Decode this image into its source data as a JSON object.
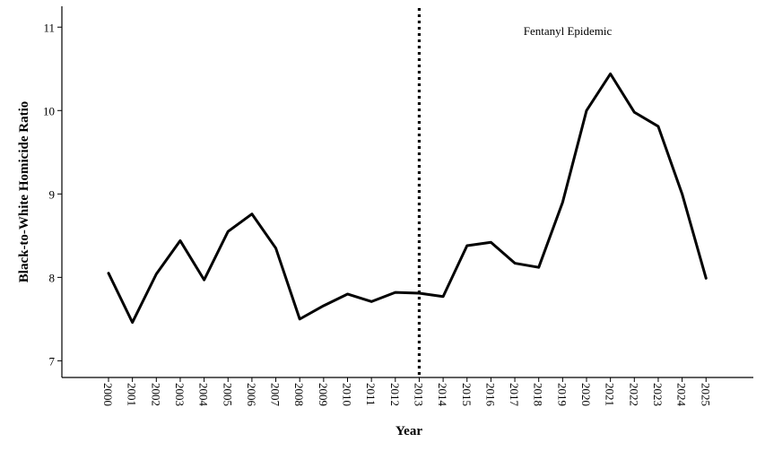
{
  "chart_data": {
    "type": "line",
    "title": "",
    "xlabel": "Year",
    "ylabel": "Black-to-White Homicide Ratio",
    "x": [
      "2000",
      "2001",
      "2002",
      "2003",
      "2004",
      "2005",
      "2006",
      "2007",
      "2008",
      "2009",
      "2010",
      "2011",
      "2012",
      "2013",
      "2014",
      "2015",
      "2016",
      "2017",
      "2018",
      "2019",
      "2020",
      "2021",
      "2022",
      "2023",
      "2024",
      "2025"
    ],
    "series": [
      {
        "name": "",
        "values": [
          8.05,
          7.46,
          8.04,
          8.44,
          7.97,
          8.55,
          8.76,
          8.35,
          7.5,
          7.66,
          7.8,
          7.71,
          7.82,
          7.81,
          7.77,
          8.38,
          8.42,
          8.17,
          8.12,
          8.9,
          10.0,
          10.44,
          9.98,
          9.81,
          9.0,
          7.99
        ]
      }
    ],
    "ylim": [
      6.8,
      11.25
    ],
    "yticks": [
      7,
      8,
      9,
      10,
      11
    ],
    "grid": false,
    "vline": {
      "x": "2013",
      "style": "dotted"
    },
    "annotation": {
      "text": "Fentanyl Epidemic"
    },
    "colors": {
      "line": "#000000",
      "axis": "#000000"
    }
  }
}
